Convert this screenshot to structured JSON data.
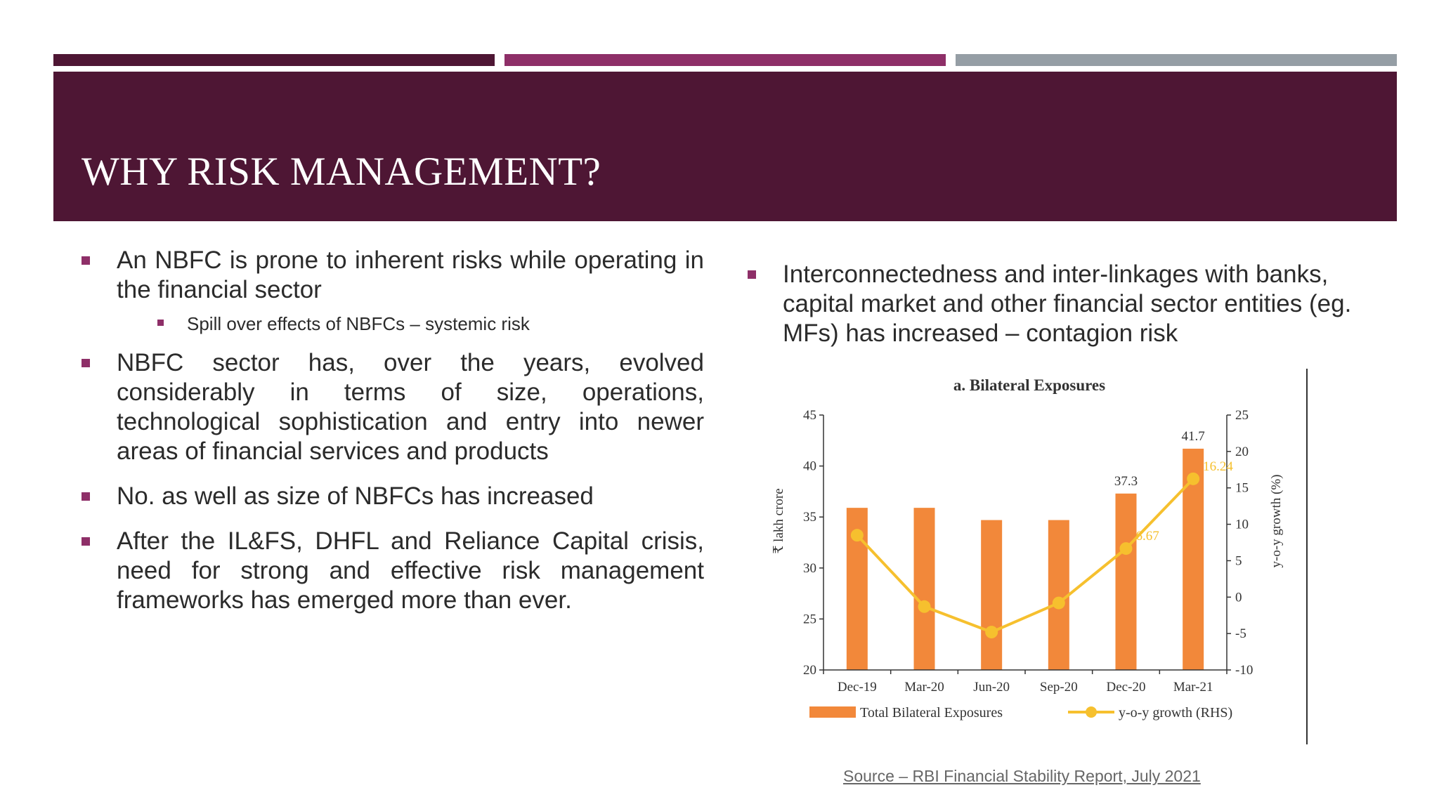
{
  "slide": {
    "title": "WHY RISK MANAGEMENT?",
    "accent_colors": {
      "dark": "#4e1634",
      "magenta": "#8e2f68",
      "gray": "#959ea5"
    }
  },
  "left_bullets": [
    {
      "text": "An NBFC is prone to inherent risks while operating in the financial sector"
    },
    {
      "text": "Spill over effects of NBFCs – systemic risk",
      "level": 2
    },
    {
      "text": "NBFC sector has, over the years, evolved considerably in terms of size, operations, technological sophistication and entry into newer areas of financial services and products"
    },
    {
      "text": "No. as well as size of NBFCs has increased"
    },
    {
      "text": "After the IL&FS, DHFL and Reliance Capital crisis, need for strong and effective risk management frameworks has emerged more than ever."
    }
  ],
  "right_bullets": [
    {
      "text": "Interconnectedness and inter-linkages with banks, capital market and other financial sector entities (eg. MFs) has increased – contagion risk"
    }
  ],
  "source": "Source – RBI Financial Stability Report, July 2021",
  "chart_data": {
    "type": "bar",
    "title": "a. Bilateral Exposures",
    "categories": [
      "Dec-19",
      "Mar-20",
      "Jun-20",
      "Sep-20",
      "Dec-20",
      "Mar-21"
    ],
    "ylabel": "₹ lakh crore",
    "ylabel_right": "y-o-y growth (%)",
    "ylim": [
      20,
      45
    ],
    "ylim_right": [
      -10,
      25
    ],
    "yticks": [
      20,
      25,
      30,
      35,
      40,
      45
    ],
    "yticks_right": [
      -10,
      -5,
      0,
      5,
      10,
      15,
      20,
      25
    ],
    "grid": false,
    "legend_position": "bottom",
    "series": [
      {
        "name": "Total Bilateral Exposures",
        "kind": "bar",
        "axis": "left",
        "color": "#f2883a",
        "values": [
          35.9,
          35.9,
          34.7,
          34.7,
          37.3,
          41.7
        ],
        "labels": [
          "",
          "",
          "",
          "",
          "37.3",
          "41.7"
        ]
      },
      {
        "name": "y-o-y growth (RHS)",
        "kind": "line",
        "axis": "right",
        "color": "#f6c02e",
        "values": [
          8.5,
          -1.3,
          -4.8,
          -0.8,
          6.67,
          16.24
        ],
        "labels": [
          "",
          "",
          "",
          "",
          "6.67",
          "16.24"
        ]
      }
    ]
  }
}
